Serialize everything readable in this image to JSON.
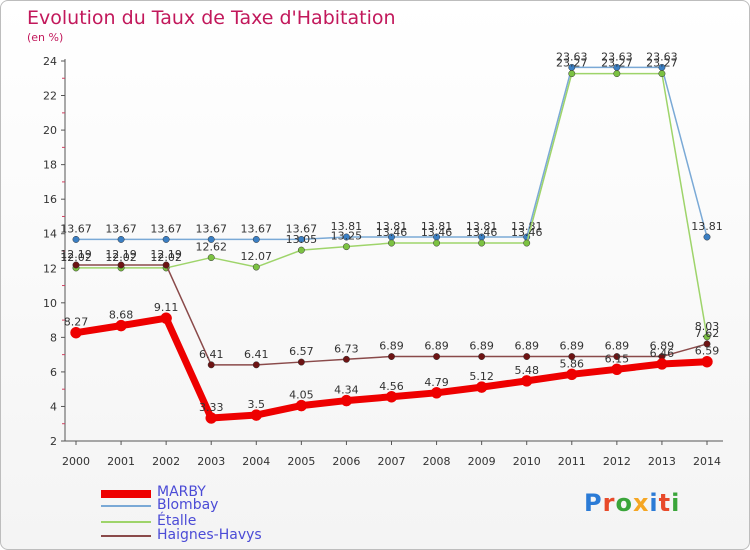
{
  "header": {
    "title": "Evolution du Taux de Taxe d'Habitation",
    "subtitle": "(en %)"
  },
  "logo": {
    "text": "Proxiti",
    "colors": [
      "#2b7bd6",
      "#e84a2a",
      "#3aa53a",
      "#f5a623",
      "#2b7bd6",
      "#e84a2a",
      "#3aa53a"
    ]
  },
  "chart_data": {
    "type": "line",
    "title": "Evolution du Taux de Taxe d'Habitation",
    "ylabel": "(en %)",
    "xlabel": "",
    "x": [
      2000,
      2001,
      2002,
      2003,
      2004,
      2005,
      2006,
      2007,
      2008,
      2009,
      2010,
      2011,
      2012,
      2013,
      2014
    ],
    "ylim": [
      2,
      24
    ],
    "yticks": [
      2,
      4,
      6,
      8,
      10,
      12,
      14,
      16,
      18,
      20,
      22,
      24
    ],
    "grid": false,
    "legend_position": "bottom-left",
    "series": [
      {
        "name": "Blombay",
        "color": "#7aa9d6",
        "marker": "#3a7fc4",
        "width": 1.5,
        "values": [
          13.67,
          13.67,
          13.67,
          13.67,
          13.67,
          13.67,
          13.81,
          13.81,
          13.81,
          13.81,
          13.81,
          23.63,
          23.63,
          23.63,
          13.81
        ],
        "labels": [
          "13.67",
          "13.67",
          "13.67",
          "13.67",
          "13.67",
          "13.67",
          "13.81",
          "13.81",
          "13.81",
          "13.81",
          "13.81",
          "23.63",
          "23.63",
          "23.63",
          "13.81"
        ]
      },
      {
        "name": "Étalle",
        "color": "#9ed46a",
        "marker": "#7cc242",
        "width": 1.5,
        "values": [
          12.02,
          12.02,
          12.02,
          12.62,
          12.07,
          13.05,
          13.25,
          13.46,
          13.46,
          13.46,
          13.46,
          23.27,
          23.27,
          23.27,
          8.03
        ],
        "labels": [
          "12.02",
          "12.02",
          "12.02",
          "12.62",
          "12.07",
          "13.05",
          "13.25",
          "13.46",
          "13.46",
          "13.46",
          "13.46",
          "23.27",
          "23.27",
          "23.27",
          "8.03"
        ]
      },
      {
        "name": "Haignes-Havys",
        "color": "#8a4a4a",
        "marker": "#6e1414",
        "width": 1.5,
        "values": [
          12.19,
          12.19,
          12.19,
          6.41,
          6.41,
          6.57,
          6.73,
          6.89,
          6.89,
          6.89,
          6.89,
          6.89,
          6.89,
          6.89,
          7.62
        ],
        "labels": [
          "12.19",
          "12.19",
          "12.19",
          "6.41",
          "6.41",
          "6.57",
          "6.73",
          "6.89",
          "6.89",
          "6.89",
          "6.89",
          "6.89",
          "6.89",
          "6.89",
          "7.62"
        ]
      },
      {
        "name": "MARBY",
        "color": "#ee0000",
        "marker": "#ee0000",
        "width": 7,
        "values": [
          8.27,
          8.68,
          9.11,
          3.33,
          3.5,
          4.05,
          4.34,
          4.56,
          4.79,
          5.12,
          5.48,
          5.86,
          6.15,
          6.46,
          6.59
        ],
        "labels": [
          "8.27",
          "8.68",
          "9.11",
          "3.33",
          "3.5",
          "4.05",
          "4.34",
          "4.56",
          "4.79",
          "5.12",
          "5.48",
          "5.86",
          "6.15",
          "6.46",
          "6.59"
        ]
      }
    ],
    "legend": [
      "MARBY",
      "Blombay",
      "Étalle",
      "Haignes-Havys"
    ]
  }
}
